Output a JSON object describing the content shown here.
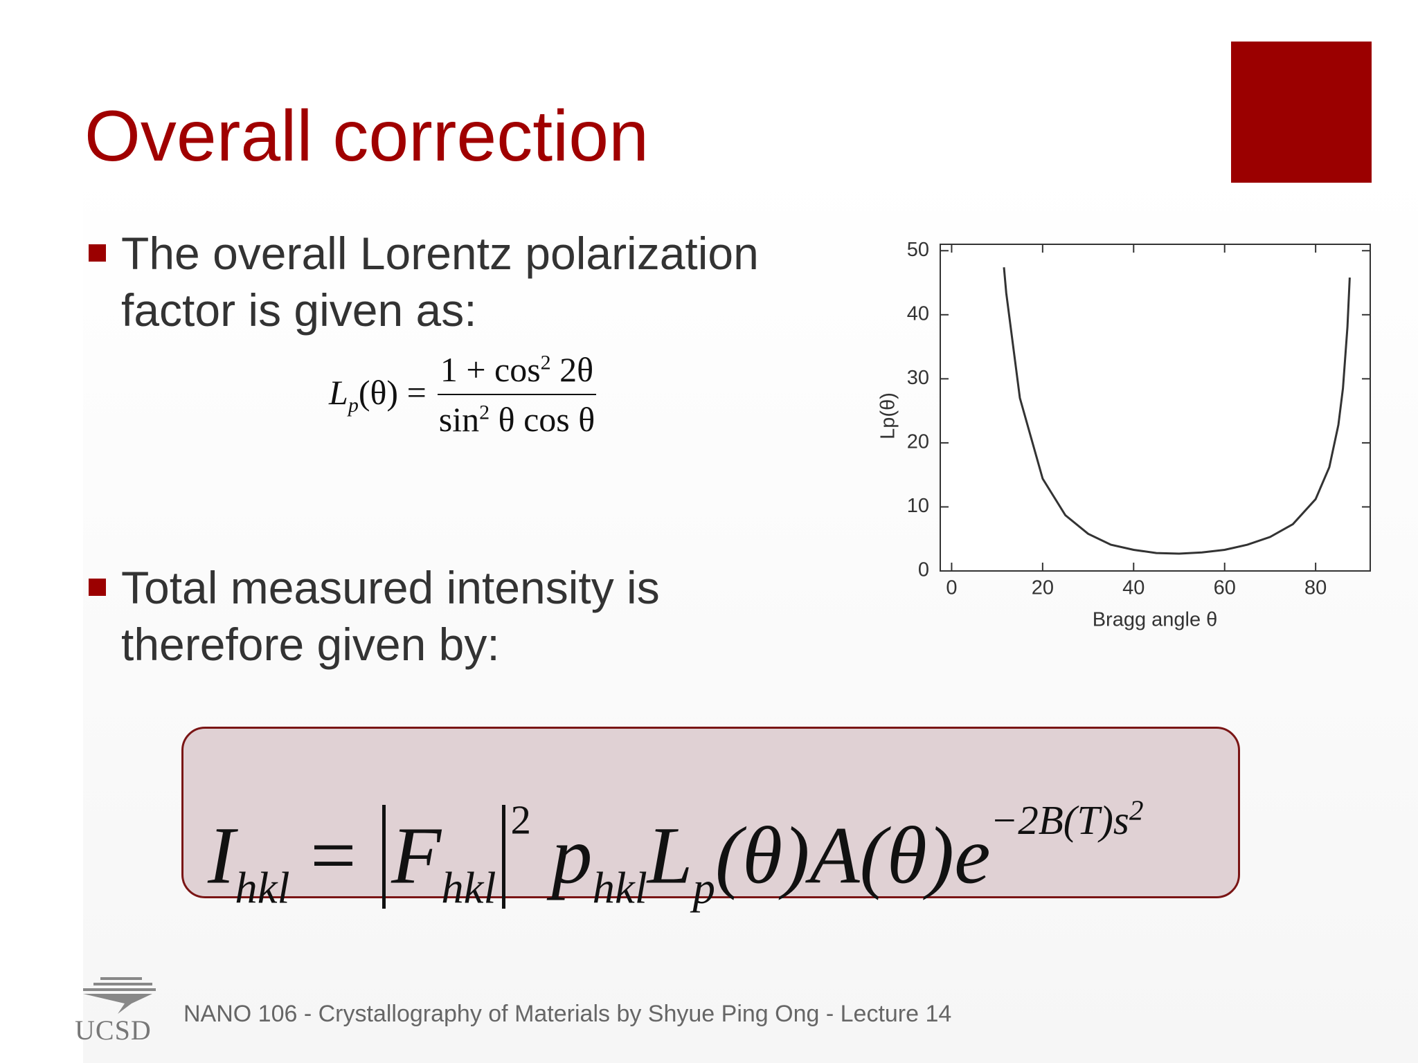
{
  "title": "Overall correction",
  "bullets": [
    "The overall Lorentz polarization factor is given as:",
    "Total measured intensity is therefore given by:"
  ],
  "formula_lp": {
    "lhs": "L",
    "lhs_sub": "p",
    "lhs_arg": "(θ) =",
    "num_a": "1 + cos",
    "num_sup": "2",
    "num_b": " 2θ",
    "den_a": "sin",
    "den_sup": "2",
    "den_b": " θ cos θ"
  },
  "formula_i": {
    "i": "I",
    "i_sub": "hkl",
    "eq": " = ",
    "f": "F",
    "f_sub": "hkl",
    "f_sup": "2",
    "p": "p",
    "p_sub": "hkl",
    "l": "L",
    "l_sub": "p",
    "rest": "(θ)A(θ)e",
    "exp": "−2B(T)s",
    "exp_sup": "2"
  },
  "chart_data": {
    "type": "line",
    "x_label": "Bragg angle θ",
    "y_label": "Lp(θ)",
    "color": "#333333",
    "x": [
      11.5,
      12,
      15,
      20,
      25,
      30,
      35,
      40,
      45,
      50,
      55,
      60,
      65,
      70,
      75,
      80,
      83,
      85,
      86,
      87,
      87.5
    ],
    "values": [
      47.4,
      43.4,
      27.0,
      14.4,
      8.7,
      5.8,
      4.1,
      3.3,
      2.8,
      2.7,
      2.9,
      3.3,
      4.1,
      5.3,
      7.3,
      11.2,
      16.2,
      22.8,
      28.5,
      38.1,
      45.8
    ],
    "xlim": [
      -2.5,
      92
    ],
    "ylim": [
      0,
      51
    ],
    "xticks": [
      0,
      20,
      40,
      60,
      80
    ],
    "yticks": [
      0,
      10,
      20,
      30,
      40,
      50
    ]
  },
  "footer": {
    "logo_text": "UCSD",
    "text": "NANO 106 - Crystallography of Materials by Shyue Ping Ong - Lecture 14"
  }
}
